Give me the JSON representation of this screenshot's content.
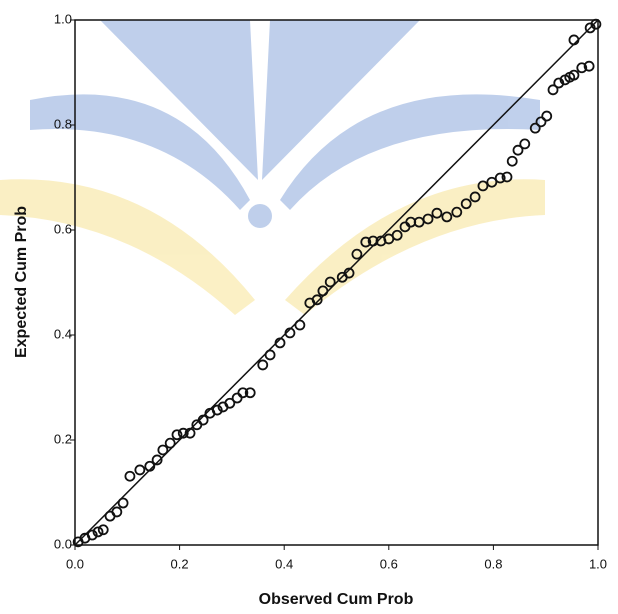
{
  "chart_data": {
    "type": "scatter",
    "x_label": "Observed Cum Prob",
    "y_label": "Expected Cum Prob",
    "xlim": [
      0,
      1
    ],
    "ylim": [
      0,
      1
    ],
    "xticks": [
      {
        "value": 0,
        "label": "0.0"
      },
      0.2,
      0.4,
      0.6,
      0.8,
      {
        "value": 1,
        "label": "1.0"
      }
    ],
    "yticks": [
      {
        "value": 0,
        "label": "0.0"
      },
      0.2,
      0.4,
      0.6,
      0.8,
      {
        "value": 1,
        "label": "1.0"
      }
    ],
    "color": "#111111",
    "x": [
      0.006,
      0.019,
      0.033,
      0.044,
      0.054,
      0.067,
      0.08,
      0.092,
      0.105,
      0.124,
      0.143,
      0.157,
      0.168,
      0.182,
      0.195,
      0.207,
      0.22,
      0.233,
      0.245,
      0.258,
      0.272,
      0.283,
      0.296,
      0.31,
      0.321,
      0.335,
      0.359,
      0.373,
      0.392,
      0.411,
      0.43,
      0.449,
      0.463,
      0.474,
      0.488,
      0.511,
      0.524,
      0.539,
      0.556,
      0.57,
      0.585,
      0.6,
      0.616,
      0.631,
      0.642,
      0.658,
      0.675,
      0.692,
      0.711,
      0.73,
      0.748,
      0.765,
      0.78,
      0.797,
      0.813,
      0.826,
      0.836,
      0.847,
      0.86,
      0.88,
      0.891,
      0.902,
      0.914,
      0.925,
      0.937,
      0.946,
      0.954,
      0.969,
      0.983,
      0.954,
      0.985,
      0.996
    ],
    "values": [
      0.006,
      0.013,
      0.019,
      0.025,
      0.029,
      0.055,
      0.063,
      0.08,
      0.131,
      0.143,
      0.15,
      0.162,
      0.181,
      0.194,
      0.21,
      0.213,
      0.213,
      0.229,
      0.238,
      0.251,
      0.257,
      0.263,
      0.27,
      0.28,
      0.29,
      0.29,
      0.343,
      0.362,
      0.385,
      0.404,
      0.419,
      0.461,
      0.467,
      0.484,
      0.501,
      0.51,
      0.518,
      0.554,
      0.577,
      0.579,
      0.579,
      0.583,
      0.59,
      0.606,
      0.615,
      0.615,
      0.621,
      0.632,
      0.625,
      0.634,
      0.65,
      0.663,
      0.684,
      0.691,
      0.699,
      0.701,
      0.731,
      0.752,
      0.764,
      0.794,
      0.806,
      0.817,
      0.867,
      0.88,
      0.886,
      0.891,
      0.895,
      0.909,
      0.912,
      0.962,
      0.985,
      0.992
    ]
  }
}
